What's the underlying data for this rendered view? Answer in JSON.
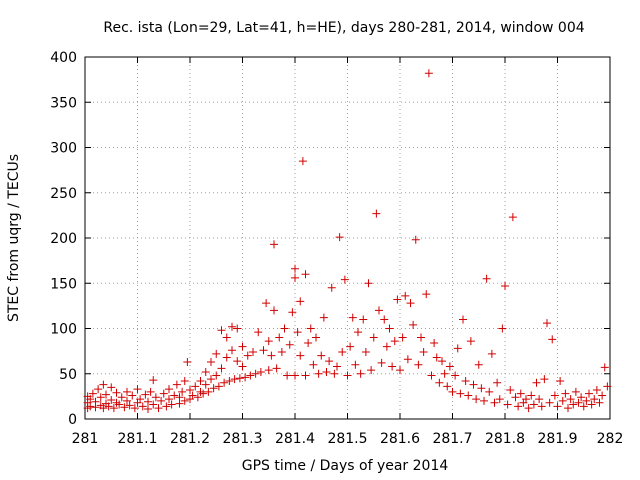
{
  "chart_data": {
    "type": "scatter",
    "title": "Rec. ista (Lon=29, Lat=41, h=HE), days 280-281, 2014, window 004",
    "xlabel": "GPS time / Days of year 2014",
    "ylabel": "STEC from uqrg / TECUs",
    "xlim": [
      281,
      282
    ],
    "ylim": [
      0,
      400
    ],
    "grid": true,
    "marker": "+",
    "color": "#d00000",
    "xticks": [
      281,
      281.1,
      281.2,
      281.3,
      281.4,
      281.5,
      281.6,
      281.7,
      281.8,
      281.9,
      282
    ],
    "xtick_labels": [
      "281",
      "281.1",
      "281.2",
      "281.3",
      "281.4",
      "281.5",
      "281.6",
      "281.7",
      "281.8",
      "281.9",
      "282"
    ],
    "yticks": [
      0,
      50,
      100,
      150,
      200,
      250,
      300,
      350,
      400
    ],
    "ytick_labels": [
      "0",
      "50",
      "100",
      "150",
      "200",
      "250",
      "300",
      "350",
      "400"
    ],
    "series": [
      {
        "name": "STEC",
        "points": [
          [
            281.005,
            12
          ],
          [
            281.005,
            18
          ],
          [
            281.005,
            25
          ],
          [
            281.01,
            14
          ],
          [
            281.01,
            22
          ],
          [
            281.015,
            28
          ],
          [
            281.02,
            13
          ],
          [
            281.02,
            19
          ],
          [
            281.025,
            33
          ],
          [
            281.03,
            15
          ],
          [
            281.03,
            24
          ],
          [
            281.035,
            12
          ],
          [
            281.035,
            38
          ],
          [
            281.04,
            17
          ],
          [
            281.04,
            27
          ],
          [
            281.045,
            14
          ],
          [
            281.05,
            21
          ],
          [
            281.05,
            35
          ],
          [
            281.055,
            12
          ],
          [
            281.06,
            18
          ],
          [
            281.06,
            29
          ],
          [
            281.065,
            16
          ],
          [
            281.07,
            24
          ],
          [
            281.075,
            13
          ],
          [
            281.08,
            20
          ],
          [
            281.08,
            30
          ],
          [
            281.085,
            15
          ],
          [
            281.09,
            26
          ],
          [
            281.095,
            12
          ],
          [
            281.1,
            18
          ],
          [
            281.1,
            33
          ],
          [
            281.105,
            22
          ],
          [
            281.11,
            14
          ],
          [
            281.115,
            27
          ],
          [
            281.12,
            11
          ],
          [
            281.12,
            19
          ],
          [
            281.125,
            30
          ],
          [
            281.13,
            16
          ],
          [
            281.13,
            43
          ],
          [
            281.135,
            24
          ],
          [
            281.14,
            12
          ],
          [
            281.145,
            20
          ],
          [
            281.15,
            28
          ],
          [
            281.155,
            14
          ],
          [
            281.16,
            22
          ],
          [
            281.16,
            33
          ],
          [
            281.165,
            16
          ],
          [
            281.17,
            26
          ],
          [
            281.175,
            38
          ],
          [
            281.18,
            17
          ],
          [
            281.18,
            24
          ],
          [
            281.185,
            30
          ],
          [
            281.19,
            20
          ],
          [
            281.19,
            42
          ],
          [
            281.195,
            63
          ],
          [
            281.2,
            22
          ],
          [
            281.2,
            32
          ],
          [
            281.205,
            26
          ],
          [
            281.21,
            36
          ],
          [
            281.215,
            24
          ],
          [
            281.22,
            30
          ],
          [
            281.22,
            42
          ],
          [
            281.225,
            28
          ],
          [
            281.23,
            38
          ],
          [
            281.23,
            52
          ],
          [
            281.235,
            30
          ],
          [
            281.24,
            44
          ],
          [
            281.24,
            63
          ],
          [
            281.245,
            34
          ],
          [
            281.25,
            48
          ],
          [
            281.25,
            72
          ],
          [
            281.255,
            36
          ],
          [
            281.26,
            56
          ],
          [
            281.26,
            98
          ],
          [
            281.265,
            40
          ],
          [
            281.27,
            68
          ],
          [
            281.27,
            90
          ],
          [
            281.275,
            42
          ],
          [
            281.28,
            76
          ],
          [
            281.28,
            102
          ],
          [
            281.285,
            44
          ],
          [
            281.29,
            64
          ],
          [
            281.29,
            100
          ],
          [
            281.295,
            45
          ],
          [
            281.3,
            58
          ],
          [
            281.3,
            80
          ],
          [
            281.305,
            46
          ],
          [
            281.31,
            70
          ],
          [
            281.315,
            48
          ],
          [
            281.32,
            74
          ],
          [
            281.325,
            50
          ],
          [
            281.33,
            96
          ],
          [
            281.335,
            52
          ],
          [
            281.34,
            76
          ],
          [
            281.345,
            128
          ],
          [
            281.35,
            54
          ],
          [
            281.35,
            86
          ],
          [
            281.355,
            70
          ],
          [
            281.36,
            120
          ],
          [
            281.36,
            193
          ],
          [
            281.365,
            56
          ],
          [
            281.37,
            90
          ],
          [
            281.375,
            74
          ],
          [
            281.38,
            100
          ],
          [
            281.385,
            48
          ],
          [
            281.39,
            82
          ],
          [
            281.395,
            118
          ],
          [
            281.4,
            48
          ],
          [
            281.4,
            166
          ],
          [
            281.4,
            156
          ],
          [
            281.405,
            96
          ],
          [
            281.41,
            130
          ],
          [
            281.41,
            70
          ],
          [
            281.415,
            285
          ],
          [
            281.42,
            48
          ],
          [
            281.42,
            160
          ],
          [
            281.425,
            84
          ],
          [
            281.43,
            100
          ],
          [
            281.435,
            60
          ],
          [
            281.44,
            90
          ],
          [
            281.445,
            50
          ],
          [
            281.45,
            70
          ],
          [
            281.455,
            112
          ],
          [
            281.46,
            52
          ],
          [
            281.465,
            64
          ],
          [
            281.47,
            145
          ],
          [
            281.475,
            50
          ],
          [
            281.48,
            58
          ],
          [
            281.485,
            201
          ],
          [
            281.49,
            74
          ],
          [
            281.495,
            154
          ],
          [
            281.5,
            48
          ],
          [
            281.505,
            80
          ],
          [
            281.51,
            112
          ],
          [
            281.515,
            60
          ],
          [
            281.52,
            96
          ],
          [
            281.525,
            50
          ],
          [
            281.53,
            110
          ],
          [
            281.535,
            74
          ],
          [
            281.54,
            150
          ],
          [
            281.545,
            54
          ],
          [
            281.55,
            90
          ],
          [
            281.555,
            227
          ],
          [
            281.56,
            120
          ],
          [
            281.565,
            62
          ],
          [
            281.57,
            110
          ],
          [
            281.575,
            80
          ],
          [
            281.58,
            100
          ],
          [
            281.585,
            58
          ],
          [
            281.59,
            86
          ],
          [
            281.595,
            132
          ],
          [
            281.6,
            54
          ],
          [
            281.605,
            90
          ],
          [
            281.61,
            136
          ],
          [
            281.615,
            66
          ],
          [
            281.62,
            128
          ],
          [
            281.625,
            104
          ],
          [
            281.63,
            198
          ],
          [
            281.635,
            60
          ],
          [
            281.64,
            90
          ],
          [
            281.645,
            74
          ],
          [
            281.65,
            138
          ],
          [
            281.655,
            382
          ],
          [
            281.66,
            48
          ],
          [
            281.665,
            84
          ],
          [
            281.67,
            68
          ],
          [
            281.675,
            40
          ],
          [
            281.68,
            64
          ],
          [
            281.685,
            50
          ],
          [
            281.69,
            36
          ],
          [
            281.695,
            58
          ],
          [
            281.7,
            30
          ],
          [
            281.705,
            48
          ],
          [
            281.71,
            78
          ],
          [
            281.715,
            28
          ],
          [
            281.72,
            110
          ],
          [
            281.725,
            42
          ],
          [
            281.73,
            26
          ],
          [
            281.735,
            86
          ],
          [
            281.74,
            38
          ],
          [
            281.745,
            22
          ],
          [
            281.75,
            60
          ],
          [
            281.755,
            34
          ],
          [
            281.76,
            20
          ],
          [
            281.765,
            155
          ],
          [
            281.77,
            30
          ],
          [
            281.775,
            72
          ],
          [
            281.78,
            18
          ],
          [
            281.785,
            40
          ],
          [
            281.79,
            22
          ],
          [
            281.795,
            100
          ],
          [
            281.8,
            147
          ],
          [
            281.805,
            16
          ],
          [
            281.81,
            32
          ],
          [
            281.815,
            223
          ],
          [
            281.82,
            24
          ],
          [
            281.825,
            14
          ],
          [
            281.83,
            28
          ],
          [
            281.835,
            18
          ],
          [
            281.84,
            22
          ],
          [
            281.845,
            12
          ],
          [
            281.85,
            26
          ],
          [
            281.855,
            16
          ],
          [
            281.86,
            40
          ],
          [
            281.865,
            22
          ],
          [
            281.87,
            14
          ],
          [
            281.875,
            44
          ],
          [
            281.88,
            106
          ],
          [
            281.885,
            18
          ],
          [
            281.89,
            88
          ],
          [
            281.895,
            26
          ],
          [
            281.9,
            14
          ],
          [
            281.905,
            42
          ],
          [
            281.91,
            20
          ],
          [
            281.915,
            28
          ],
          [
            281.92,
            12
          ],
          [
            281.925,
            22
          ],
          [
            281.93,
            16
          ],
          [
            281.935,
            30
          ],
          [
            281.94,
            18
          ],
          [
            281.945,
            24
          ],
          [
            281.95,
            14
          ],
          [
            281.955,
            20
          ],
          [
            281.96,
            28
          ],
          [
            281.965,
            16
          ],
          [
            281.97,
            22
          ],
          [
            281.975,
            32
          ],
          [
            281.98,
            18
          ],
          [
            281.985,
            26
          ],
          [
            281.99,
            57
          ],
          [
            281.995,
            36
          ]
        ]
      }
    ]
  }
}
